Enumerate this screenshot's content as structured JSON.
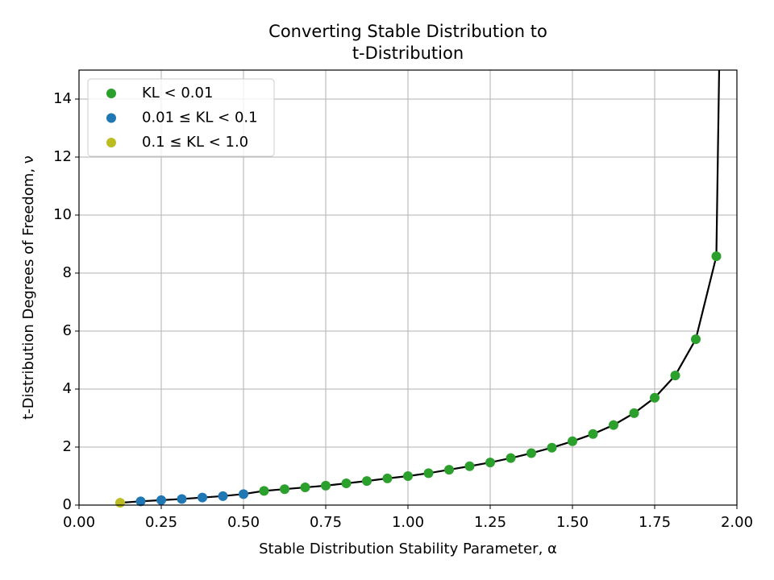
{
  "chart_data": {
    "type": "scatter",
    "title": [
      "Converting Stable Distribution to",
      "t-Distribution"
    ],
    "x_label": "Stable Distribution Stability Parameter, α",
    "y_label": "t-Distribution Degrees of Freedom, ν",
    "xlim": [
      0,
      2
    ],
    "ylim": [
      0,
      15
    ],
    "xticks": [
      {
        "value": 0,
        "label": "0.00"
      },
      {
        "value": 0.25,
        "label": "0.25"
      },
      {
        "value": 0.5,
        "label": "0.50"
      },
      {
        "value": 0.75,
        "label": "0.75"
      },
      {
        "value": 1,
        "label": "1.00"
      },
      {
        "value": 1.25,
        "label": "1.25"
      },
      {
        "value": 1.5,
        "label": "1.50"
      },
      {
        "value": 1.75,
        "label": "1.75"
      },
      {
        "value": 2,
        "label": "2.00"
      }
    ],
    "yticks": [
      0,
      2,
      4,
      6,
      8,
      10,
      12,
      14
    ],
    "grid": true,
    "legend": "upper left",
    "series": [
      {
        "name": "KL < 0.01",
        "color": "#2ca02c",
        "x": [
          0.5625,
          0.625,
          0.6875,
          0.75,
          0.8125,
          0.875,
          0.9375,
          1.0,
          1.0625,
          1.125,
          1.1875,
          1.25,
          1.3125,
          1.375,
          1.4375,
          1.5,
          1.5625,
          1.625,
          1.6875,
          1.75,
          1.8125,
          1.875,
          1.9375
        ],
        "values": [
          0.49,
          0.55,
          0.61,
          0.67,
          0.75,
          0.83,
          0.92,
          1.0,
          1.1,
          1.22,
          1.34,
          1.47,
          1.62,
          1.79,
          1.98,
          2.2,
          2.45,
          2.76,
          3.17,
          3.7,
          4.47,
          5.72,
          8.58
        ]
      },
      {
        "name": "0.01 ≤ KL < 0.1",
        "color": "#1f77b4",
        "x": [
          0.1875,
          0.25,
          0.3125,
          0.375,
          0.4375,
          0.5
        ],
        "values": [
          0.13,
          0.17,
          0.21,
          0.26,
          0.31,
          0.38
        ]
      },
      {
        "name": "0.1 ≤ KL < 1.0",
        "color": "#bcbd22",
        "x": [
          0.125
        ],
        "values": [
          0.08
        ]
      }
    ],
    "fit_line": {
      "color": "#000000",
      "x": [
        0.125,
        0.1875,
        0.25,
        0.3125,
        0.375,
        0.4375,
        0.5,
        0.5625,
        0.625,
        0.6875,
        0.75,
        0.8125,
        0.875,
        0.9375,
        1.0,
        1.0625,
        1.125,
        1.1875,
        1.25,
        1.3125,
        1.375,
        1.4375,
        1.5,
        1.5625,
        1.625,
        1.6875,
        1.75,
        1.8125,
        1.875,
        1.9375,
        1.946
      ],
      "values": [
        0.08,
        0.13,
        0.17,
        0.21,
        0.26,
        0.31,
        0.38,
        0.49,
        0.55,
        0.61,
        0.67,
        0.75,
        0.83,
        0.92,
        1.0,
        1.1,
        1.22,
        1.34,
        1.47,
        1.62,
        1.79,
        1.98,
        2.2,
        2.45,
        2.76,
        3.17,
        3.7,
        4.47,
        5.72,
        8.58,
        15
      ]
    }
  }
}
